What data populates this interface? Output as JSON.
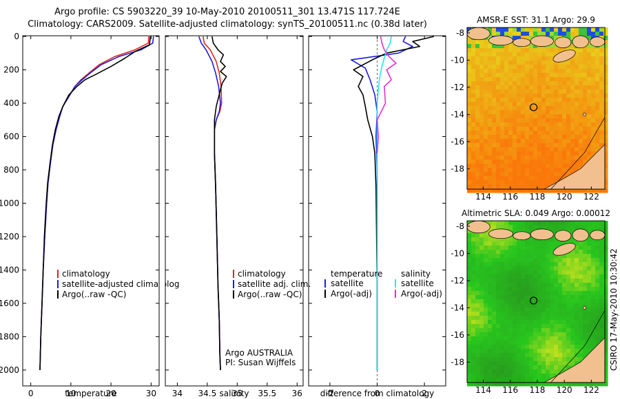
{
  "header": {
    "line1": "Argo profile: CS 5903220_39 10-May-2010 20100511_301 13.471S 117.724E",
    "line2": "Climatology: CARS2009. Satellite-adjusted climatology: synTS_20100511.nc (0.38d later)"
  },
  "colors": {
    "climatology": "#e0231c",
    "satellite": "#1a1ae6",
    "argo": "#000000",
    "salinity_satellite": "#22e6ee",
    "salinity_argo": "#e62ed2",
    "land": "#f2c08e"
  },
  "chart_data": [
    {
      "type": "line",
      "name": "temperature",
      "xlabel": "temperature",
      "ylabel": "",
      "xlim": [
        -2,
        32
      ],
      "ylim": [
        2050,
        0
      ],
      "xticks": [
        "0",
        "10",
        "20",
        "30"
      ],
      "yticks": [
        "0",
        "200",
        "400",
        "600",
        "800",
        "1000",
        "1200",
        "1400",
        "1600",
        "1800",
        "2000"
      ],
      "legend": [
        "climatology",
        "satellite-adjusted climatolog",
        "Argo(..raw -QC)"
      ],
      "series": [
        {
          "name": "climatology",
          "x": [
            29.4,
            29.3,
            26,
            21,
            17,
            14.5,
            12.5,
            11,
            9.5,
            8,
            7.2,
            6.3,
            5.5,
            4.9,
            4.3,
            3.9,
            3.5,
            3.1,
            2.8,
            2.5,
            2.3
          ],
          "y": [
            0,
            40,
            80,
            120,
            170,
            220,
            260,
            300,
            360,
            420,
            480,
            560,
            650,
            760,
            880,
            1020,
            1200,
            1400,
            1600,
            1800,
            2000
          ]
        },
        {
          "name": "satellite",
          "x": [
            30.6,
            30.4,
            27.5,
            22,
            17.5,
            14.8,
            12.8,
            11,
            9.5,
            8,
            7.2,
            6.3,
            5.5,
            4.9,
            4.3,
            3.9,
            3.5,
            3.1,
            2.8,
            2.5,
            2.3
          ],
          "y": [
            0,
            40,
            80,
            120,
            170,
            220,
            260,
            300,
            360,
            420,
            480,
            560,
            650,
            760,
            880,
            1020,
            1200,
            1400,
            1600,
            1800,
            2000
          ]
        },
        {
          "name": "Argo",
          "x": [
            29.8,
            29.6,
            26,
            23.5,
            20,
            16,
            13.5,
            11.5,
            9.5,
            8,
            7,
            6.1,
            5.4,
            4.8,
            4.2,
            3.8,
            3.4,
            3.1,
            2.8,
            2.5,
            2.3
          ],
          "y": [
            0,
            50,
            90,
            130,
            180,
            230,
            260,
            300,
            350,
            420,
            480,
            560,
            650,
            760,
            880,
            1020,
            1200,
            1400,
            1600,
            1800,
            2000
          ]
        }
      ]
    },
    {
      "type": "line",
      "name": "salinity",
      "xlabel": "salinity",
      "xlim": [
        33.8,
        36.1
      ],
      "ylim": [
        2050,
        0
      ],
      "xticks": [
        "34",
        "34.5",
        "35",
        "35.5",
        "36"
      ],
      "legend": [
        "climatology",
        "satellite adj. clim.",
        "Argo(..raw -QC)"
      ],
      "annotation": [
        "Argo AUSTRALIA",
        "PI: Susan Wijffels"
      ],
      "series": [
        {
          "name": "climatology",
          "x": [
            34.43,
            34.45,
            34.55,
            34.65,
            34.7,
            34.73,
            34.74,
            34.71,
            34.65,
            34.62,
            34.62,
            34.64,
            34.66,
            34.68,
            34.7,
            34.71,
            34.72
          ],
          "y": [
            0,
            40,
            80,
            150,
            220,
            300,
            400,
            450,
            500,
            560,
            700,
            900,
            1200,
            1500,
            1700,
            1900,
            2000
          ]
        },
        {
          "name": "satellite",
          "x": [
            34.36,
            34.4,
            34.48,
            34.58,
            34.64,
            34.69,
            34.72,
            34.7,
            34.65,
            34.62,
            34.62,
            34.64,
            34.66,
            34.68,
            34.7,
            34.71,
            34.72
          ],
          "y": [
            0,
            40,
            80,
            150,
            220,
            300,
            400,
            450,
            500,
            560,
            700,
            900,
            1200,
            1500,
            1700,
            1900,
            2000
          ]
        },
        {
          "name": "Argo",
          "x": [
            34.58,
            34.6,
            34.68,
            34.77,
            34.72,
            34.8,
            34.72,
            34.82,
            34.75,
            34.72,
            34.65,
            34.62,
            34.62,
            34.64,
            34.66,
            34.68,
            34.7,
            34.71,
            34.72
          ],
          "y": [
            0,
            40,
            80,
            110,
            150,
            180,
            210,
            240,
            280,
            320,
            420,
            500,
            700,
            900,
            1200,
            1500,
            1700,
            1900,
            2000
          ]
        }
      ]
    },
    {
      "type": "line",
      "name": "difference",
      "xlabel": "difference from climatology",
      "xlim": [
        -2.9,
        2.9
      ],
      "ylim": [
        2050,
        0
      ],
      "xticks": [
        "-2",
        "0",
        "2"
      ],
      "legend_temperature": [
        "temperature",
        "satellite",
        "Argo(-adj)"
      ],
      "legend_salinity": [
        "salinity",
        "satellite",
        "Argo(-adj)"
      ],
      "series": [
        {
          "name": "temperature satellite",
          "x": [
            1.2,
            1.1,
            1.5,
            0.9,
            -1.1,
            -0.5,
            -0.3,
            -0.1,
            0.0,
            -0.05,
            0.0,
            0.0,
            0.0,
            0.0,
            0.0
          ],
          "y": [
            0,
            30,
            60,
            100,
            140,
            190,
            260,
            350,
            450,
            600,
            800,
            1100,
            1500,
            1800,
            2000
          ]
        },
        {
          "name": "temperature Argo",
          "x": [
            2.4,
            1.5,
            1.8,
            0.4,
            -0.2,
            -1.0,
            -0.6,
            -0.8,
            -0.6,
            -0.5,
            -0.4,
            -0.2,
            -0.1,
            -0.05,
            0.0,
            0.0
          ],
          "y": [
            0,
            30,
            60,
            100,
            140,
            200,
            240,
            300,
            350,
            420,
            500,
            600,
            700,
            900,
            1500,
            2000
          ]
        },
        {
          "name": "salinity satellite",
          "x": [
            0.6,
            0.55,
            0.4,
            0.3,
            0.2,
            0.1,
            0.05,
            0.0,
            0.0,
            0.0,
            0.0,
            0.0
          ],
          "y": [
            0,
            40,
            80,
            130,
            180,
            250,
            320,
            400,
            600,
            1000,
            1500,
            2000
          ]
        },
        {
          "name": "salinity Argo",
          "x": [
            0.15,
            0.2,
            0.3,
            0.5,
            0.8,
            0.4,
            0.6,
            0.3,
            0.35,
            0.0,
            0.05,
            0.0
          ],
          "y": [
            0,
            40,
            80,
            120,
            160,
            200,
            260,
            300,
            400,
            500,
            600,
            700
          ]
        }
      ]
    },
    {
      "type": "heatmap",
      "name": "sst-map",
      "title": "AMSR-E SST: 31.1 Argo: 29.9",
      "xticks": [
        "114",
        "116",
        "118",
        "120",
        "122"
      ],
      "yticks": [
        "-8",
        "-10",
        "-12",
        "-14",
        "-16",
        "-18"
      ],
      "xlim": [
        112.8,
        123
      ],
      "ylim": [
        -19.5,
        -7.6
      ],
      "marker": {
        "lon": 117.724,
        "lat": -13.471
      }
    },
    {
      "type": "heatmap",
      "name": "sla-map",
      "title": "Altimetric SLA: 0.049 Argo: 0.00012",
      "xticks": [
        "114",
        "116",
        "118",
        "120",
        "122"
      ],
      "yticks": [
        "-8",
        "-10",
        "-12",
        "-14",
        "-16",
        "-18"
      ],
      "xlim": [
        112.8,
        123
      ],
      "ylim": [
        -19.5,
        -7.6
      ],
      "marker": {
        "lon": 117.724,
        "lat": -13.471
      }
    }
  ],
  "footer": {
    "stamp": "CSIRO 17-May-2010 10:30:42"
  }
}
